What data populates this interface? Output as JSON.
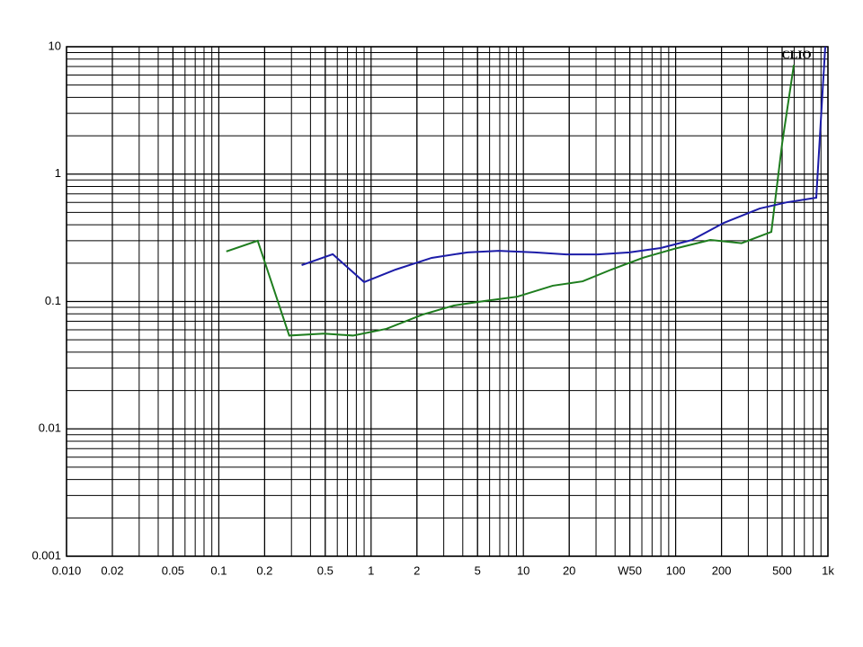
{
  "chart_data": {
    "type": "line",
    "annotation": "CLIO",
    "log_x": true,
    "log_y": true,
    "grid": true,
    "xlim": [
      0.01,
      1000
    ],
    "ylim": [
      0.001,
      10
    ],
    "xticks": [
      {
        "value": 0.01,
        "label": "0.010"
      },
      0.02,
      0.05,
      0.1,
      0.2,
      0.5,
      1,
      2,
      5,
      10,
      20,
      {
        "value": 50,
        "label": "W50"
      },
      100,
      200,
      500,
      {
        "value": 1000,
        "label": "1k"
      }
    ],
    "yticks": [
      0.001,
      0.01,
      0.1,
      1,
      10
    ],
    "series": [
      {
        "color": "#1e7d1e",
        "x": [
          0.112,
          0.18,
          0.29,
          0.49,
          0.76,
          1.26,
          2.18,
          3.5,
          5.6,
          9.1,
          15.6,
          24.5,
          37.8,
          60.8,
          97.7,
          169,
          271,
          425,
          500,
          597
        ],
        "values": [
          0.247,
          0.3,
          0.054,
          0.056,
          0.054,
          0.061,
          0.079,
          0.093,
          0.101,
          0.109,
          0.133,
          0.144,
          0.178,
          0.22,
          0.259,
          0.304,
          0.287,
          0.352,
          1.73,
          7.2
        ]
      },
      {
        "color": "#1c1ca8",
        "x": [
          0.35,
          0.56,
          0.9,
          1.45,
          2.5,
          4.3,
          6.9,
          11.9,
          19.1,
          30.8,
          49.6,
          79.8,
          128,
          207,
          356,
          535,
          838,
          960
        ],
        "values": [
          0.193,
          0.235,
          0.142,
          0.178,
          0.22,
          0.243,
          0.25,
          0.243,
          0.234,
          0.234,
          0.243,
          0.263,
          0.304,
          0.414,
          0.537,
          0.6,
          0.653,
          10
        ]
      }
    ]
  }
}
